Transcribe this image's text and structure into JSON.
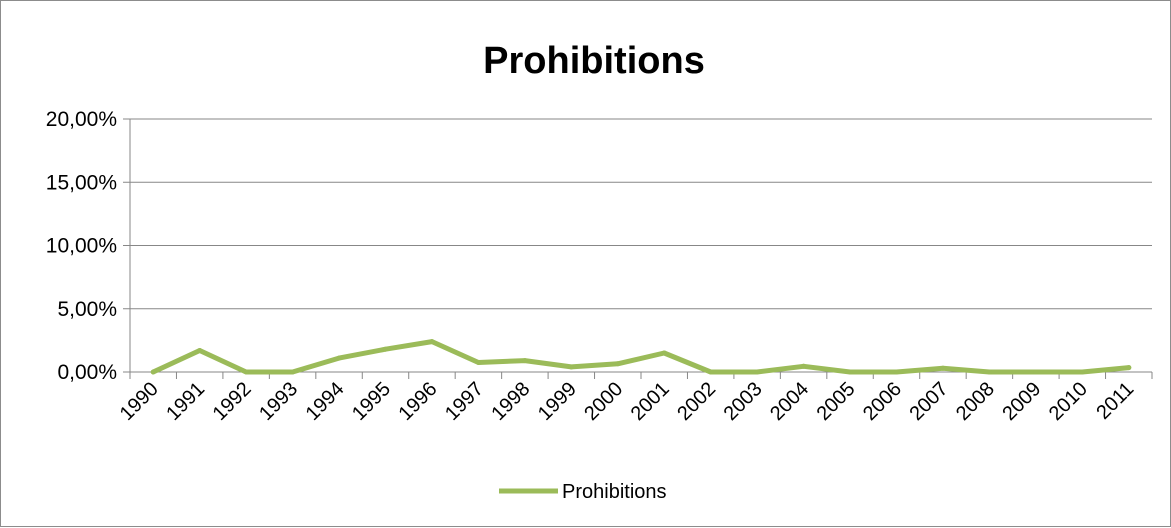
{
  "chart_data": {
    "type": "line",
    "title": "Prohibitions",
    "xlabel": "",
    "ylabel": "",
    "categories": [
      "1990",
      "1991",
      "1992",
      "1993",
      "1994",
      "1995",
      "1996",
      "1997",
      "1998",
      "1999",
      "2000",
      "2001",
      "2002",
      "2003",
      "2004",
      "2005",
      "2006",
      "2007",
      "2008",
      "2009",
      "2010",
      "2011"
    ],
    "y_ticks": [
      "0,00%",
      "5,00%",
      "10,00%",
      "15,00%",
      "20,00%"
    ],
    "ylim": [
      0,
      20
    ],
    "grid": true,
    "legend_position": "bottom",
    "series": [
      {
        "name": "Prohibitions",
        "color": "#9bbb59",
        "values": [
          0.0,
          1.7,
          0.0,
          0.0,
          1.1,
          1.8,
          2.4,
          0.75,
          0.9,
          0.4,
          0.65,
          1.5,
          0.0,
          0.0,
          0.45,
          0.0,
          0.0,
          0.3,
          0.0,
          0.0,
          0.0,
          0.35
        ]
      }
    ]
  }
}
